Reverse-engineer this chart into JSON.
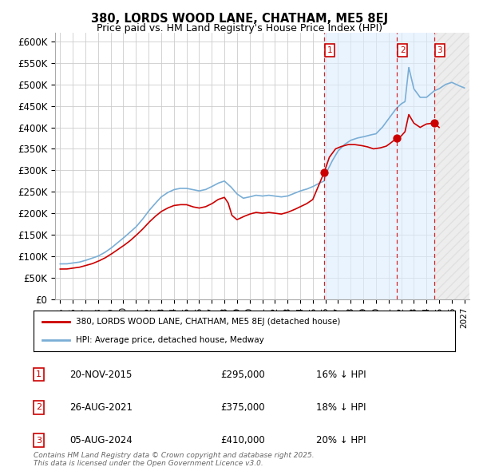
{
  "title": "380, LORDS WOOD LANE, CHATHAM, ME5 8EJ",
  "subtitle": "Price paid vs. HM Land Registry's House Price Index (HPI)",
  "hpi_color": "#7aaed6",
  "price_color": "#cc0000",
  "annotation_color": "#cc0000",
  "background_color": "#ffffff",
  "grid_color": "#cccccc",
  "shade_color": "#ddeeff",
  "hatch_color": "#bbbbbb",
  "ylim": [
    0,
    620000
  ],
  "yticks": [
    0,
    50000,
    100000,
    150000,
    200000,
    250000,
    300000,
    350000,
    400000,
    450000,
    500000,
    550000,
    600000
  ],
  "ytick_labels": [
    "£0",
    "£50K",
    "£100K",
    "£150K",
    "£200K",
    "£250K",
    "£300K",
    "£350K",
    "£400K",
    "£450K",
    "£500K",
    "£550K",
    "£600K"
  ],
  "xlim_start": 1994.6,
  "xlim_end": 2027.4,
  "sale_dates": [
    2015.9,
    2021.65,
    2024.6
  ],
  "sale_labels": [
    "1",
    "2",
    "3"
  ],
  "sale_prices": [
    295000,
    375000,
    410000
  ],
  "sale_date_labels": [
    "20-NOV-2015",
    "26-AUG-2021",
    "05-AUG-2024"
  ],
  "sale_price_labels": [
    "£295,000",
    "£375,000",
    "£410,000"
  ],
  "sale_hpi_labels": [
    "16% ↓ HPI",
    "18% ↓ HPI",
    "20% ↓ HPI"
  ],
  "legend_label_price": "380, LORDS WOOD LANE, CHATHAM, ME5 8EJ (detached house)",
  "legend_label_hpi": "HPI: Average price, detached house, Medway",
  "footer_text": "Contains HM Land Registry data © Crown copyright and database right 2025.\nThis data is licensed under the Open Government Licence v3.0.",
  "shade_start": 2015.9,
  "shade_end": 2024.6,
  "hatch_start": 2024.6,
  "hatch_end": 2027.4
}
